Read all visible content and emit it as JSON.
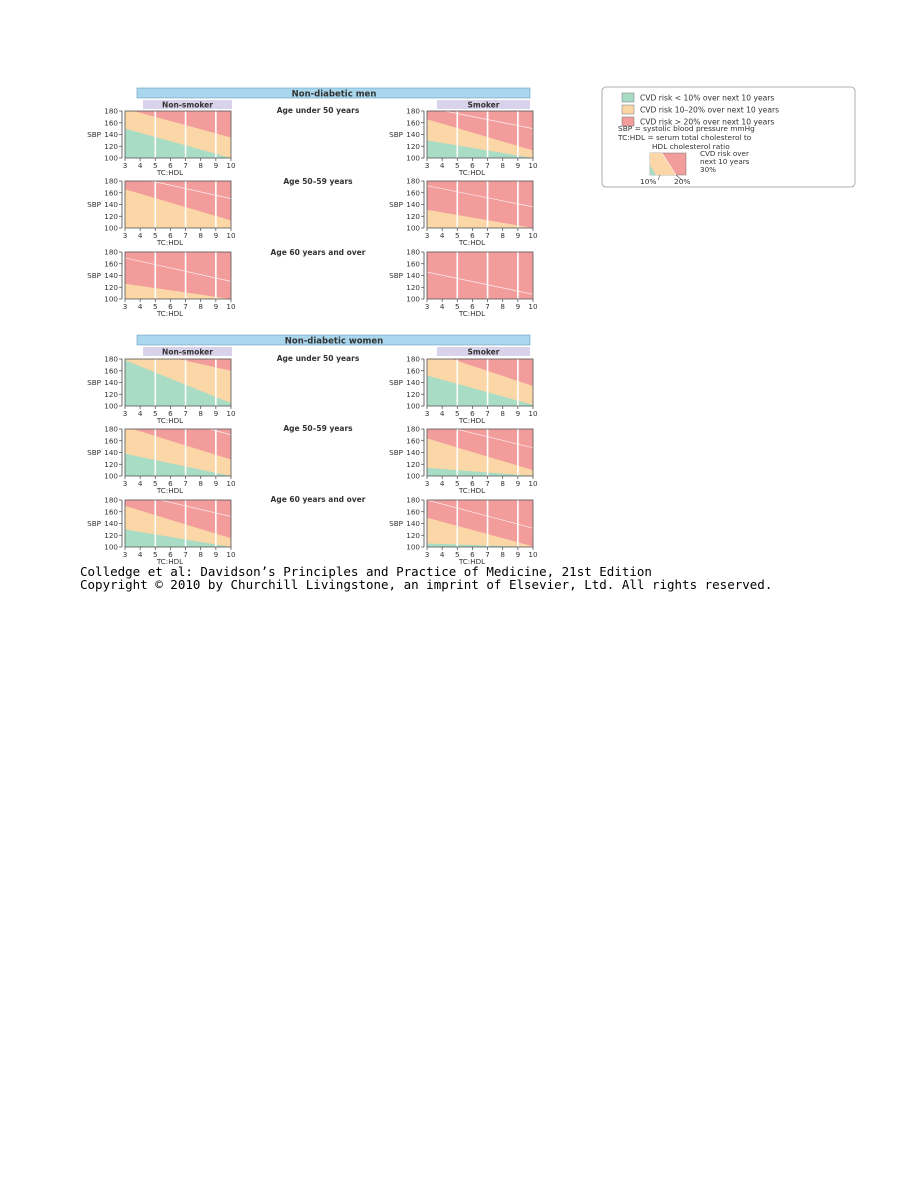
{
  "colors": {
    "low": "#a9dcc4",
    "mid": "#fbd6a6",
    "high": "#f29c9c",
    "banner": "#a9d8ee",
    "header": "#d8d2ea",
    "frame": "#555555"
  },
  "sections": [
    {
      "title": "Non-diabetic men",
      "subheaders": {
        "nonsmoker": "Non-smoker",
        "smoker": "Smoker"
      }
    },
    {
      "title": "Non-diabetic women",
      "subheaders": {
        "nonsmoker": "Non-smoker",
        "smoker": "Smoker"
      }
    }
  ],
  "age_labels": [
    "Age under 50 years",
    "Age  50–59 years",
    "Age 60 years and over"
  ],
  "legend": {
    "items": [
      {
        "key": "low",
        "label": "CVD risk < 10% over next 10 years"
      },
      {
        "key": "mid",
        "label": "CVD risk 10–20% over next 10 years"
      },
      {
        "key": "high",
        "label": "CVD risk > 20% over next 10 years"
      }
    ],
    "note_lines": [
      "SBP = systolic blood pressure mmHg",
      "TC:HDL = serum total cholesterol to",
      "HDL cholesterol ratio"
    ],
    "sample_text": [
      "CVD risk over",
      "next 10 years",
      "30%"
    ],
    "sample_ticks": [
      "10%",
      "20%"
    ]
  },
  "chart_data": {
    "type": "area",
    "xlabel": "TC:HDL",
    "ylabel": "SBP",
    "xlim": [
      3,
      10
    ],
    "ylim": [
      100,
      180
    ],
    "x_ticks": [
      "3",
      "4",
      "5",
      "6",
      "7",
      "8",
      "9",
      "10"
    ],
    "y_ticks": [
      "100",
      "120",
      "140",
      "160",
      "180"
    ],
    "boundary_x": [
      3,
      10
    ],
    "panels": [
      {
        "group": "men",
        "smoking": "non-smoker",
        "age": "under 50",
        "b10": [
          150,
          100
        ],
        "b20": [
          184,
          135
        ],
        "b30": [
          null,
          190
        ]
      },
      {
        "group": "men",
        "smoking": "smoker",
        "age": "under 50",
        "b10": [
          130,
          100
        ],
        "b20": [
          166,
          113
        ],
        "b30": [
          186,
          150
        ]
      },
      {
        "group": "men",
        "smoking": "non-smoker",
        "age": "50-59",
        "b10": [
          100,
          100
        ],
        "b20": [
          166,
          113
        ],
        "b30": [
          190,
          150
        ]
      },
      {
        "group": "men",
        "smoking": "smoker",
        "age": "50-59",
        "b10": [
          100,
          100
        ],
        "b20": [
          131,
          100
        ],
        "b30": [
          172,
          136
        ]
      },
      {
        "group": "men",
        "smoking": "non-smoker",
        "age": "60 and over",
        "b10": [
          100,
          100
        ],
        "b20": [
          126,
          100
        ],
        "b30": [
          170,
          130
        ]
      },
      {
        "group": "men",
        "smoking": "smoker",
        "age": "60 and over",
        "b10": [
          100,
          100
        ],
        "b20": [
          100,
          100
        ],
        "b30": [
          146,
          108
        ]
      },
      {
        "group": "women",
        "smoking": "non-smoker",
        "age": "under 50",
        "b10": [
          178,
          105
        ],
        "b20": [
          200,
          160
        ],
        "b30": [
          null,
          195
        ]
      },
      {
        "group": "women",
        "smoking": "smoker",
        "age": "under 50",
        "b10": [
          152,
          102
        ],
        "b20": [
          194,
          134
        ],
        "b30": [
          null,
          180
        ]
      },
      {
        "group": "women",
        "smoking": "non-smoker",
        "age": "50-59",
        "b10": [
          138,
          100
        ],
        "b20": [
          184,
          128
        ],
        "b30": [
          null,
          170
        ]
      },
      {
        "group": "women",
        "smoking": "smoker",
        "age": "50-59",
        "b10": [
          114,
          100
        ],
        "b20": [
          164,
          110
        ],
        "b30": [
          192,
          148
        ]
      },
      {
        "group": "women",
        "smoking": "non-smoker",
        "age": "60 and over",
        "b10": [
          130,
          100
        ],
        "b20": [
          170,
          115
        ],
        "b30": [
          194,
          152
        ]
      },
      {
        "group": "women",
        "smoking": "smoker",
        "age": "60 and over",
        "b10": [
          106,
          100
        ],
        "b20": [
          150,
          101
        ],
        "b30": [
          180,
          132
        ]
      }
    ]
  },
  "caption": {
    "line1": "Colledge et al: Davidson’s Principles and Practice of Medicine, 21st Edition",
    "line2": "Copyright © 2010 by Churchill Livingstone, an imprint of Elsevier, Ltd. All rights reserved."
  }
}
